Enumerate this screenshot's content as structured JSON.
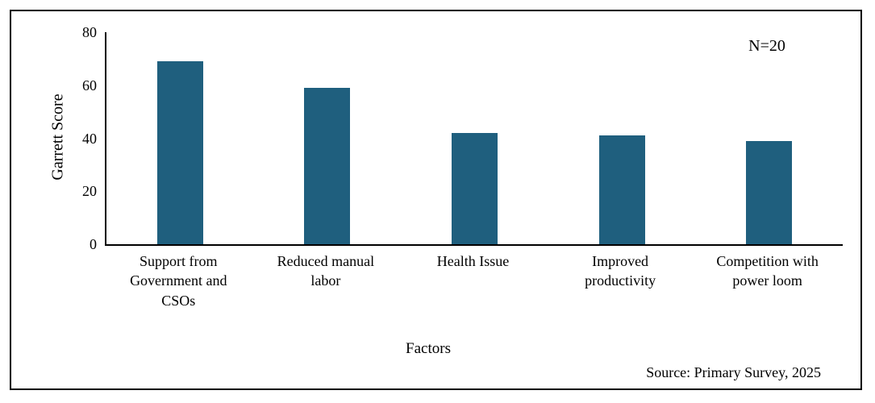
{
  "chart_data": {
    "type": "bar",
    "title": "",
    "categories": [
      "Support from Government and CSOs",
      "Reduced manual labor",
      "Health Issue",
      "Improved productivity",
      "Competition with power loom"
    ],
    "categories_wrapped": [
      [
        "Support from",
        "Government and",
        "CSOs"
      ],
      [
        "Reduced manual",
        "labor"
      ],
      [
        "Health Issue"
      ],
      [
        "Improved",
        "productivity"
      ],
      [
        "Competition with",
        "power loom"
      ]
    ],
    "values": [
      69,
      59,
      42,
      41,
      39
    ],
    "xlabel": "Factors",
    "ylabel": "Garrett Score",
    "ylim": [
      0,
      80
    ],
    "yticks": [
      0,
      20,
      40,
      60,
      80
    ],
    "bar_color": "#1F5F7E",
    "grid": false,
    "legend": false,
    "annotation": "N=20",
    "source_note": "Source: Primary Survey, 2025"
  }
}
